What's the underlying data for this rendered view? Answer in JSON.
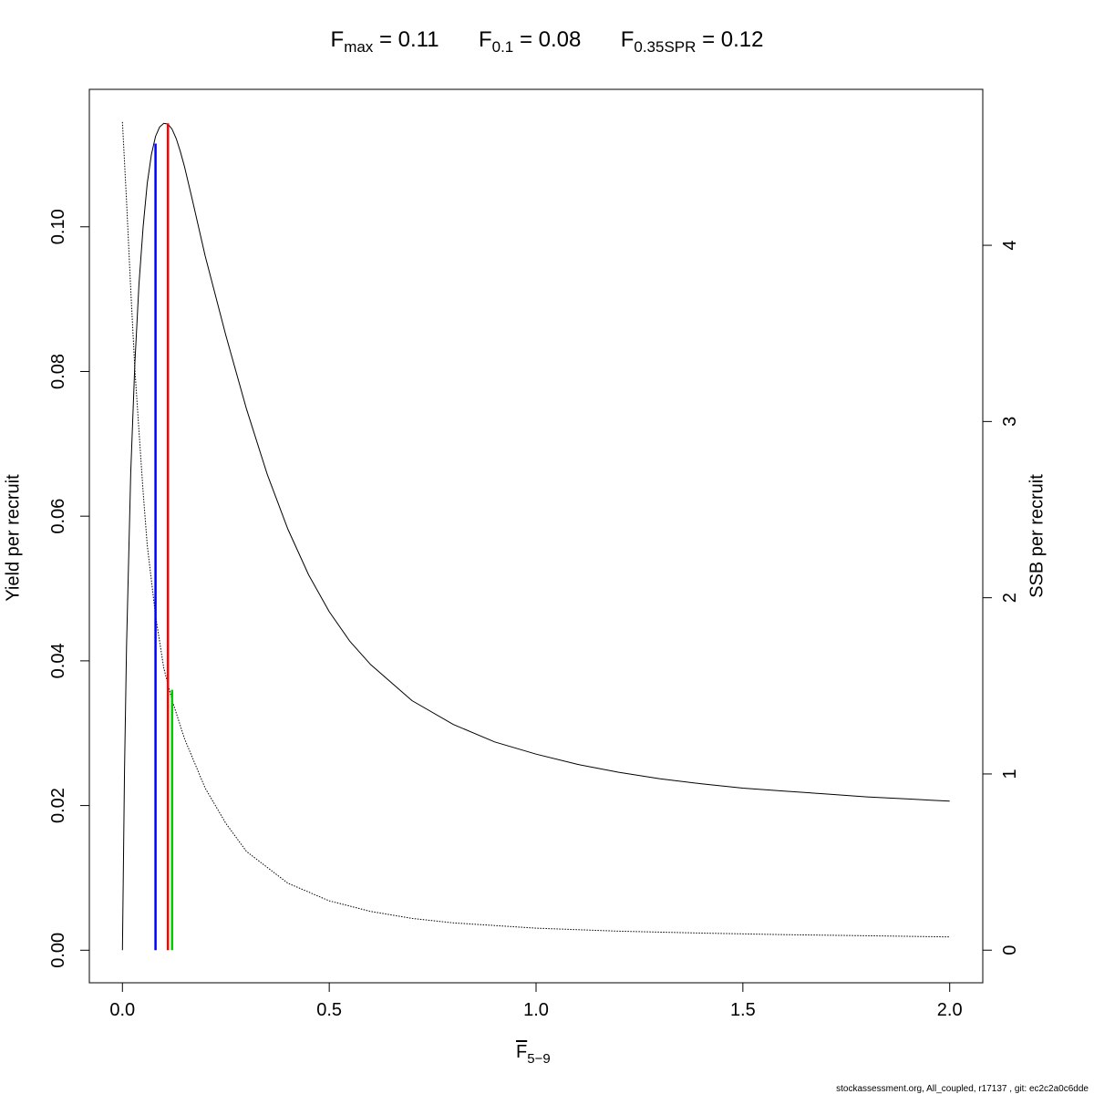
{
  "title": {
    "parts": [
      {
        "main": "F",
        "sub": "max",
        "value": "= 0.11"
      },
      {
        "main": "F",
        "sub": "0.1",
        "value": "= 0.08"
      },
      {
        "main": "F",
        "sub": "0.35SPR",
        "value": "= 0.12"
      }
    ]
  },
  "footer": "stockassessment.org, All_coupled, r17137 , git: ec2c2a0c6dde",
  "chart_data": {
    "type": "line",
    "xlabel": {
      "main": "F",
      "sub": "5−9"
    },
    "ylabel": "Yield per recruit",
    "y2label": "SSB per recruit",
    "xlim": [
      -0.08,
      2.08
    ],
    "ylim": [
      -0.0045,
      0.119
    ],
    "y2lim": [
      -0.185,
      4.885
    ],
    "x_ticks": [
      "0.0",
      "0.5",
      "1.0",
      "1.5",
      "2.0"
    ],
    "x_tick_values": [
      0,
      0.5,
      1.0,
      1.5,
      2.0
    ],
    "y_ticks": [
      "0.00",
      "0.02",
      "0.04",
      "0.06",
      "0.08",
      "0.10"
    ],
    "y_tick_values": [
      0,
      0.02,
      0.04,
      0.06,
      0.08,
      0.1
    ],
    "y2_ticks": [
      "0",
      "1",
      "2",
      "3",
      "4"
    ],
    "y2_tick_values": [
      0,
      1,
      2,
      3,
      4
    ],
    "series": [
      {
        "id": "ypr",
        "axis": "left",
        "style": "solid",
        "color": "#000000",
        "x": [
          0,
          0.005,
          0.01,
          0.02,
          0.03,
          0.04,
          0.05,
          0.06,
          0.07,
          0.08,
          0.09,
          0.1,
          0.11,
          0.12,
          0.13,
          0.14,
          0.15,
          0.17,
          0.2,
          0.25,
          0.3,
          0.35,
          0.4,
          0.45,
          0.5,
          0.55,
          0.6,
          0.7,
          0.8,
          0.9,
          1.0,
          1.1,
          1.2,
          1.3,
          1.4,
          1.5,
          1.6,
          1.7,
          1.8,
          1.9,
          2.0
        ],
        "y": [
          0,
          0.025,
          0.042,
          0.066,
          0.081,
          0.092,
          0.1,
          0.106,
          0.11,
          0.1125,
          0.1138,
          0.1143,
          0.1142,
          0.1135,
          0.1122,
          0.1104,
          0.1083,
          0.1035,
          0.096,
          0.085,
          0.0748,
          0.0658,
          0.0582,
          0.0519,
          0.0468,
          0.0427,
          0.0395,
          0.0345,
          0.0312,
          0.0288,
          0.0271,
          0.0257,
          0.0246,
          0.0237,
          0.023,
          0.0224,
          0.022,
          0.0216,
          0.0212,
          0.0209,
          0.0206
        ]
      },
      {
        "id": "sspr",
        "axis": "right",
        "style": "dotted",
        "color": "#000000",
        "x": [
          0,
          0.01,
          0.02,
          0.03,
          0.04,
          0.05,
          0.06,
          0.08,
          0.1,
          0.12,
          0.15,
          0.2,
          0.25,
          0.3,
          0.4,
          0.5,
          0.6,
          0.7,
          0.8,
          1.0,
          1.2,
          1.4,
          1.6,
          1.8,
          2.0
        ],
        "y": [
          4.7,
          4.25,
          3.75,
          3.3,
          2.95,
          2.6,
          2.3,
          1.9,
          1.6,
          1.42,
          1.2,
          0.92,
          0.72,
          0.56,
          0.38,
          0.28,
          0.22,
          0.18,
          0.155,
          0.125,
          0.108,
          0.097,
          0.088,
          0.082,
          0.075
        ]
      }
    ],
    "reference_lines": [
      {
        "id": "f01",
        "x": 0.08,
        "y_top": 0.1115,
        "color": "#0000ff"
      },
      {
        "id": "fmax",
        "x": 0.11,
        "y_top": 0.1143,
        "color": "#ff0000"
      },
      {
        "id": "f035spr",
        "x": 0.12,
        "y_top": 0.036,
        "color": "#00cc00"
      }
    ],
    "grid": false
  }
}
